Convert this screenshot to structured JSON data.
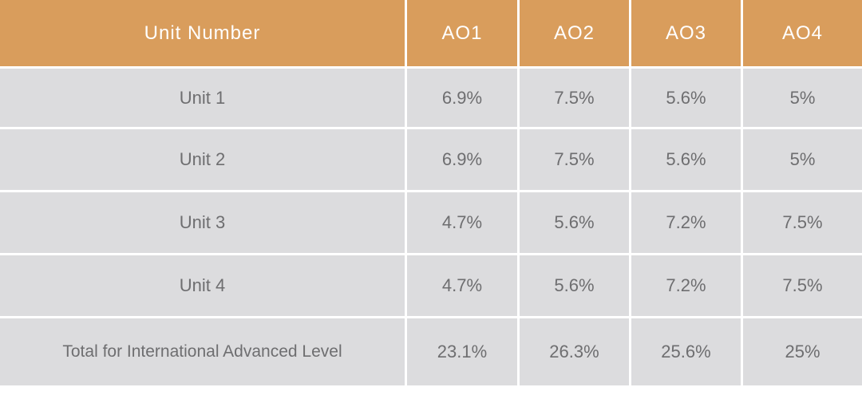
{
  "table": {
    "headers": [
      "Unit Number",
      "AO1",
      "AO2",
      "AO3",
      "AO4"
    ],
    "rows": [
      [
        "Unit 1",
        "6.9%",
        "7.5%",
        "5.6%",
        "5%"
      ],
      [
        "Unit 2",
        "6.9%",
        "7.5%",
        "5.6%",
        "5%"
      ],
      [
        "Unit 3",
        "4.7%",
        "5.6%",
        "7.2%",
        "7.5%"
      ],
      [
        "Unit 4",
        "4.7%",
        "5.6%",
        "7.2%",
        "7.5%"
      ],
      [
        "Total for International Advanced Level",
        "23.1%",
        "26.3%",
        "25.6%",
        "25%"
      ]
    ]
  },
  "colors": {
    "header_background": "#d99d5c",
    "header_text": "#ffffff",
    "row_background": "#dcdcde",
    "row_text": "#6e6e70"
  }
}
